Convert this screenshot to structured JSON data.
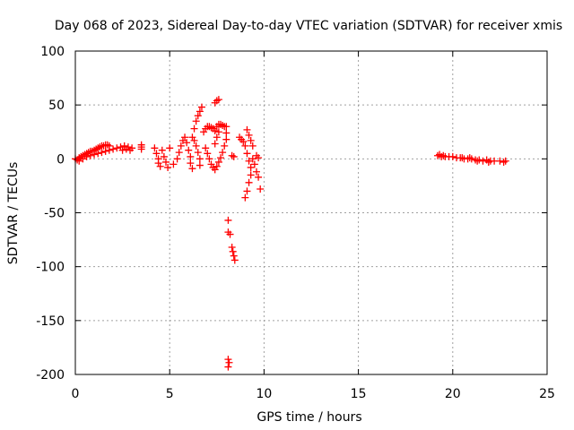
{
  "chart_data": {
    "type": "scatter",
    "title": "Day 068 of 2023, Sidereal Day-to-day VTEC variation (SDTVAR) for receiver xmis",
    "xlabel": "GPS time / hours",
    "ylabel": "SDTVAR / TECUs",
    "xlim": [
      0,
      25
    ],
    "ylim": [
      -200,
      100
    ],
    "xticks": [
      0,
      5,
      10,
      15,
      20,
      25
    ],
    "yticks": [
      -200,
      -150,
      -100,
      -50,
      0,
      50,
      100
    ],
    "grid": true,
    "marker": "plus",
    "series": [
      {
        "name": "SDTVAR",
        "color": "#ff0000",
        "points": [
          [
            0.0,
            0
          ],
          [
            0.1,
            -1
          ],
          [
            0.2,
            1
          ],
          [
            0.3,
            2
          ],
          [
            0.4,
            3
          ],
          [
            0.5,
            4
          ],
          [
            0.6,
            5
          ],
          [
            0.7,
            6
          ],
          [
            0.8,
            7
          ],
          [
            0.9,
            7
          ],
          [
            1.0,
            8
          ],
          [
            1.1,
            9
          ],
          [
            1.2,
            10
          ],
          [
            1.3,
            11
          ],
          [
            1.4,
            12
          ],
          [
            1.5,
            12
          ],
          [
            1.6,
            13
          ],
          [
            1.7,
            13
          ],
          [
            1.8,
            12
          ],
          [
            0.2,
            -2
          ],
          [
            0.4,
            0
          ],
          [
            0.6,
            2
          ],
          [
            0.8,
            3
          ],
          [
            1.0,
            4
          ],
          [
            1.2,
            5
          ],
          [
            1.4,
            6
          ],
          [
            1.6,
            7
          ],
          [
            1.8,
            8
          ],
          [
            2.0,
            9
          ],
          [
            2.2,
            10
          ],
          [
            2.4,
            11
          ],
          [
            2.6,
            12
          ],
          [
            2.8,
            11
          ],
          [
            3.0,
            10
          ],
          [
            2.5,
            8
          ],
          [
            2.7,
            9
          ],
          [
            2.9,
            8
          ],
          [
            3.5,
            9
          ],
          [
            3.5,
            11
          ],
          [
            3.5,
            13
          ],
          [
            4.2,
            10
          ],
          [
            4.3,
            5
          ],
          [
            4.4,
            0
          ],
          [
            4.4,
            -4
          ],
          [
            4.5,
            -7
          ],
          [
            4.6,
            8
          ],
          [
            4.7,
            2
          ],
          [
            4.8,
            -3
          ],
          [
            4.9,
            -8
          ],
          [
            5.0,
            10
          ],
          [
            5.2,
            -5
          ],
          [
            5.4,
            0
          ],
          [
            5.5,
            6
          ],
          [
            5.6,
            12
          ],
          [
            5.7,
            17
          ],
          [
            5.8,
            20
          ],
          [
            5.9,
            15
          ],
          [
            6.0,
            8
          ],
          [
            6.1,
            2
          ],
          [
            6.1,
            -4
          ],
          [
            6.2,
            -9
          ],
          [
            6.2,
            20
          ],
          [
            6.3,
            28
          ],
          [
            6.4,
            35
          ],
          [
            6.5,
            40
          ],
          [
            6.6,
            44
          ],
          [
            6.7,
            48
          ],
          [
            6.3,
            17
          ],
          [
            6.4,
            12
          ],
          [
            6.5,
            6
          ],
          [
            6.6,
            0
          ],
          [
            6.6,
            -6
          ],
          [
            6.8,
            25
          ],
          [
            6.9,
            28
          ],
          [
            7.0,
            30
          ],
          [
            7.1,
            30
          ],
          [
            7.2,
            29
          ],
          [
            7.3,
            28
          ],
          [
            7.4,
            26
          ],
          [
            6.9,
            10
          ],
          [
            7.0,
            5
          ],
          [
            7.1,
            0
          ],
          [
            7.2,
            -5
          ],
          [
            7.3,
            -8
          ],
          [
            7.4,
            -10
          ],
          [
            7.5,
            -7
          ],
          [
            7.6,
            -3
          ],
          [
            7.7,
            1
          ],
          [
            7.8,
            6
          ],
          [
            7.9,
            12
          ],
          [
            8.0,
            18
          ],
          [
            8.0,
            24
          ],
          [
            8.0,
            30
          ],
          [
            7.5,
            30
          ],
          [
            7.6,
            32
          ],
          [
            7.7,
            32
          ],
          [
            7.8,
            31
          ],
          [
            7.9,
            30
          ],
          [
            7.4,
            52
          ],
          [
            7.5,
            54
          ],
          [
            7.6,
            55
          ],
          [
            7.6,
            25
          ],
          [
            7.5,
            20
          ],
          [
            7.4,
            14
          ],
          [
            8.3,
            3
          ],
          [
            8.4,
            2
          ],
          [
            8.7,
            20
          ],
          [
            8.8,
            18
          ],
          [
            8.9,
            16
          ],
          [
            9.0,
            12
          ],
          [
            9.1,
            27
          ],
          [
            9.2,
            22
          ],
          [
            9.3,
            17
          ],
          [
            9.4,
            12
          ],
          [
            9.1,
            5
          ],
          [
            9.2,
            -2
          ],
          [
            9.3,
            -8
          ],
          [
            9.3,
            -15
          ],
          [
            9.2,
            -22
          ],
          [
            9.1,
            -30
          ],
          [
            9.0,
            -36
          ],
          [
            9.4,
            0
          ],
          [
            9.5,
            -5
          ],
          [
            9.6,
            -12
          ],
          [
            9.7,
            -17
          ],
          [
            9.8,
            -28
          ],
          [
            9.6,
            3
          ],
          [
            9.7,
            1
          ],
          [
            8.1,
            -57
          ],
          [
            8.1,
            -68
          ],
          [
            8.2,
            -70
          ],
          [
            8.3,
            -82
          ],
          [
            8.35,
            -86
          ],
          [
            8.4,
            -90
          ],
          [
            8.45,
            -94
          ],
          [
            8.1,
            -186
          ],
          [
            8.15,
            -189
          ],
          [
            8.1,
            -193
          ],
          [
            19.2,
            3
          ],
          [
            19.3,
            4
          ],
          [
            19.4,
            2
          ],
          [
            19.5,
            3
          ],
          [
            19.6,
            2
          ],
          [
            19.8,
            2
          ],
          [
            20.0,
            2
          ],
          [
            20.2,
            1
          ],
          [
            20.4,
            1
          ],
          [
            20.6,
            0
          ],
          [
            20.8,
            0
          ],
          [
            21.0,
            0
          ],
          [
            21.2,
            -1
          ],
          [
            21.4,
            -1
          ],
          [
            21.6,
            -2
          ],
          [
            21.8,
            -1
          ],
          [
            22.0,
            -2
          ],
          [
            22.2,
            -2
          ],
          [
            22.5,
            -2
          ],
          [
            22.7,
            -3
          ],
          [
            22.8,
            -2
          ],
          [
            21.3,
            -2
          ],
          [
            21.9,
            -3
          ],
          [
            20.5,
            1
          ],
          [
            20.9,
            1
          ]
        ]
      }
    ]
  }
}
